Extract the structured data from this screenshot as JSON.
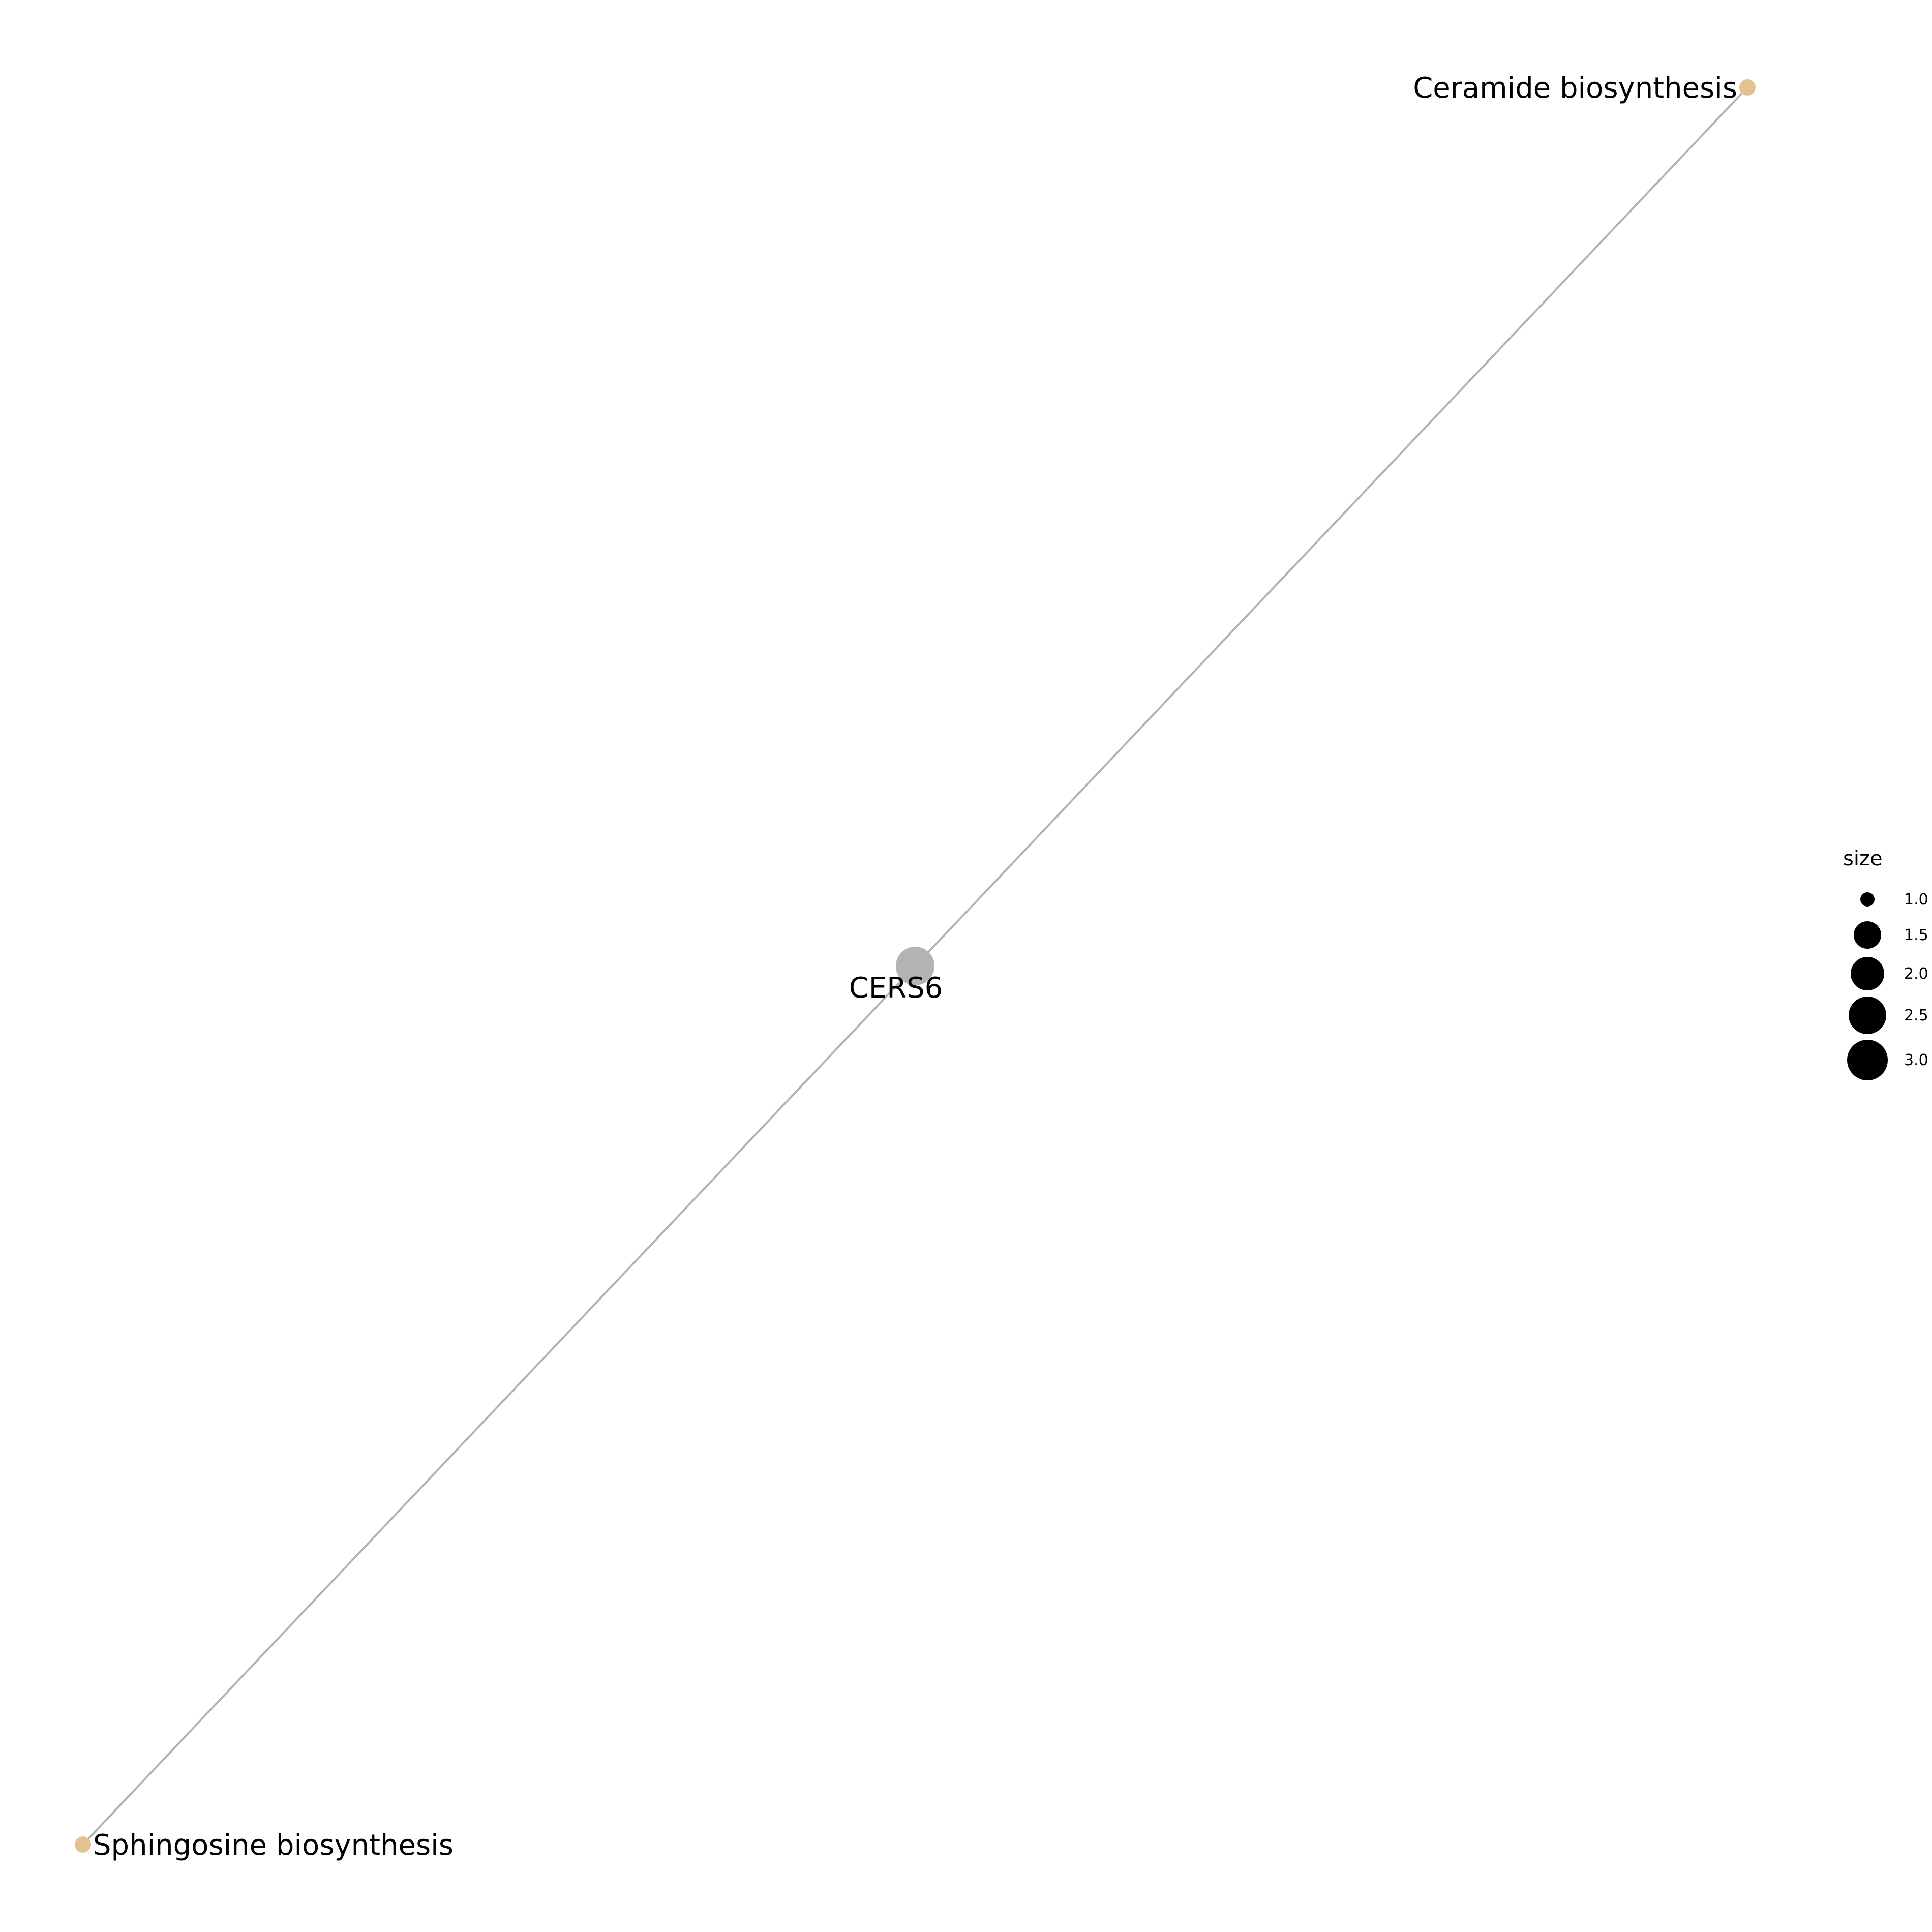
{
  "network": {
    "colors": {
      "edge": "#b3b3b3",
      "gene_node": "#b3b3b3",
      "pathway_node": "#e2c290",
      "legend_marker": "#000000"
    },
    "nodes": [
      {
        "id": "gene",
        "label": "CERS6",
        "type": "gene"
      },
      {
        "id": "ceramide",
        "label": "Ceramide biosynthesis",
        "type": "pathway"
      },
      {
        "id": "sphingosine",
        "label": "Sphingosine biosynthesis",
        "type": "pathway"
      }
    ],
    "edges": [
      {
        "from": "gene",
        "to": "ceramide"
      },
      {
        "from": "gene",
        "to": "sphingosine"
      }
    ]
  },
  "legend": {
    "title": "size",
    "items": [
      {
        "label": "1.0",
        "value": 1.0
      },
      {
        "label": "1.5",
        "value": 1.5
      },
      {
        "label": "2.0",
        "value": 2.0
      },
      {
        "label": "2.5",
        "value": 2.5
      },
      {
        "label": "3.0",
        "value": 3.0
      }
    ]
  }
}
